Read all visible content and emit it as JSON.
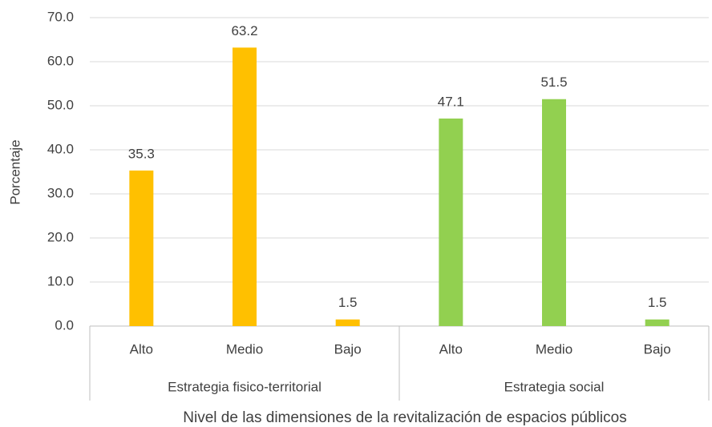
{
  "chart_data": {
    "type": "bar",
    "y_label": "Porcentaje",
    "x_label": "Nivel de las dimensiones de la revitalización de espacios públicos",
    "groups": [
      {
        "name": "Estrategia fisico-territorial",
        "color": "#ffc000",
        "categories": [
          "Alto",
          "Medio",
          "Bajo"
        ],
        "values": [
          35.3,
          63.2,
          1.5
        ]
      },
      {
        "name": "Estrategia social",
        "color": "#92d050",
        "categories": [
          "Alto",
          "Medio",
          "Bajo"
        ],
        "values": [
          47.1,
          51.5,
          1.5
        ]
      }
    ],
    "ylim": [
      0,
      70
    ],
    "yticks": [
      {
        "value": 0,
        "label": "0.0"
      },
      {
        "value": 10,
        "label": "10.0"
      },
      {
        "value": 20,
        "label": "20.0"
      },
      {
        "value": 30,
        "label": "30.0"
      },
      {
        "value": 40,
        "label": "40.0"
      },
      {
        "value": 50,
        "label": "50.0"
      },
      {
        "value": 60,
        "label": "60.0"
      },
      {
        "value": 70,
        "label": "70.0"
      }
    ],
    "grid": true
  }
}
